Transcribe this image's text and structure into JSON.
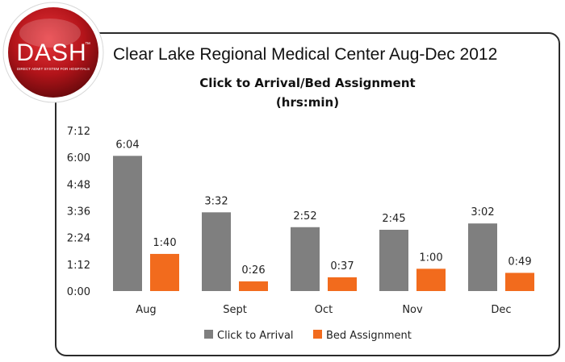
{
  "logo": {
    "text": "DASH",
    "tagline": "DIRECT ADMIT SYSTEM FOR HOSPITALS",
    "trademark": "™"
  },
  "header": {
    "title": "Clear Lake Regional Medical Center Aug-Dec 2012"
  },
  "colors": {
    "series1": "#7f7f7f",
    "series2": "#f26b1d",
    "logo_red": "#c4161c",
    "frame": "#2a2a2a"
  },
  "chart_data": {
    "type": "bar",
    "title": "Click to Arrival/Bed Assignment",
    "subtitle": "(hrs:min)",
    "xlabel": "",
    "ylabel": "",
    "categories": [
      "Aug",
      "Sept",
      "Oct",
      "Nov",
      "Dec"
    ],
    "y_ticks": [
      "0:00",
      "1:12",
      "2:24",
      "3:36",
      "4:48",
      "6:00",
      "7:12"
    ],
    "ylim_minutes": [
      0,
      432
    ],
    "grid": false,
    "legend_position": "bottom",
    "series": [
      {
        "name": "Click to Arrival",
        "values_minutes": [
          364,
          212,
          172,
          165,
          182
        ],
        "labels": [
          "6:04",
          "3:32",
          "2:52",
          "2:45",
          "3:02"
        ]
      },
      {
        "name": "Bed Assignment",
        "values_minutes": [
          100,
          26,
          37,
          60,
          49
        ],
        "labels": [
          "1:40",
          "0:26",
          "0:37",
          "1:00",
          "0:49"
        ]
      }
    ]
  }
}
